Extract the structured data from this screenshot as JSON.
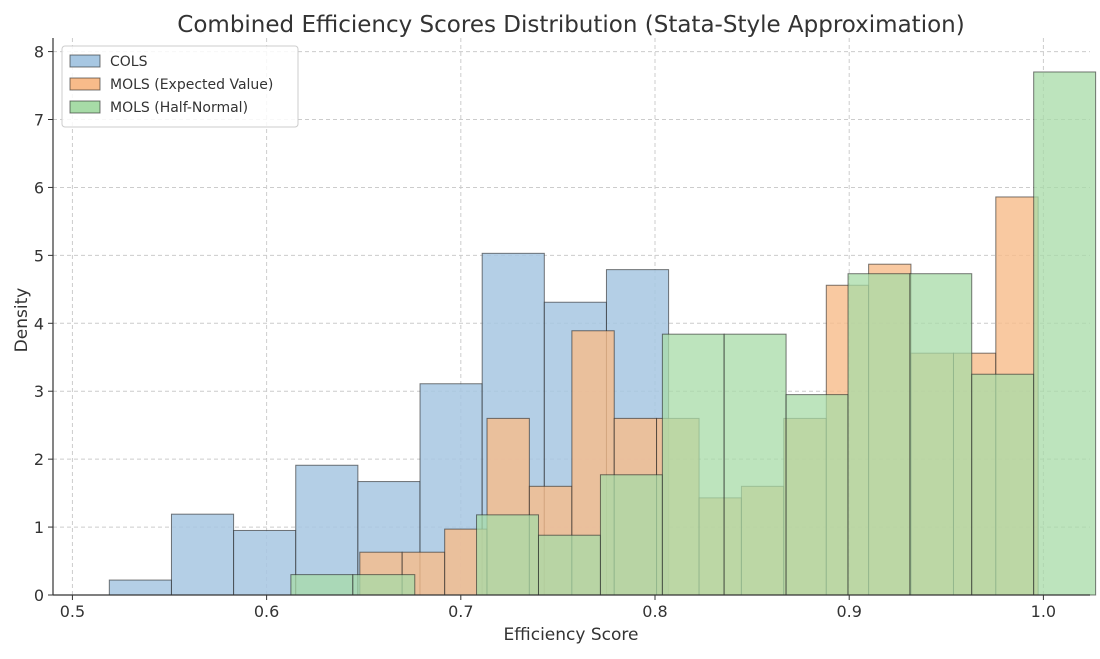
{
  "chart_data": {
    "type": "bar",
    "title": "Combined Efficiency Scores Distribution (Stata-Style Approximation)",
    "xlabel": "Efficiency Score",
    "ylabel": "Density",
    "xlim": [
      0.49,
      1.024
    ],
    "ylim": [
      0,
      8.2
    ],
    "xticks": [
      "0.5",
      "0.6",
      "0.7",
      "0.8",
      "0.9",
      "1.0"
    ],
    "yticks": [
      "0",
      "1",
      "2",
      "3",
      "4",
      "5",
      "6",
      "7",
      "8"
    ],
    "grid": true,
    "legend_position": "top-left",
    "series": [
      {
        "name": "COLS",
        "color": "#a7c7e2",
        "edges": [
          0.519,
          0.551,
          0.583,
          0.615,
          0.647,
          0.679,
          0.711,
          0.743,
          0.775,
          0.807
        ],
        "values": [
          0.22,
          1.19,
          0.95,
          1.91,
          1.67,
          3.11,
          5.03,
          4.31,
          4.79
        ]
      },
      {
        "name": "MOLS (Expected Value)",
        "color": "#f8bb8a",
        "edges": [
          0.648,
          0.6698,
          0.6917,
          0.7135,
          0.7353,
          0.7572,
          0.779,
          0.8008,
          0.8227,
          0.8445,
          0.8663,
          0.8882,
          0.91,
          0.9318,
          0.9537,
          0.9755,
          0.9973
        ],
        "values": [
          0.63,
          0.63,
          0.97,
          2.6,
          1.6,
          3.89,
          2.6,
          2.6,
          1.43,
          1.6,
          2.6,
          4.56,
          4.87,
          3.56,
          3.56,
          5.86
        ]
      },
      {
        "name": "MOLS (Half-Normal)",
        "color": "#a7dba7",
        "edges": [
          0.6125,
          0.6444,
          0.6763,
          0.7081,
          0.74,
          0.7719,
          0.8038,
          0.8356,
          0.8675,
          0.8994,
          0.9313,
          0.9631,
          0.995,
          1.0269
        ],
        "values": [
          0.3,
          0.3,
          0.0,
          1.18,
          0.88,
          1.77,
          3.84,
          3.84,
          2.95,
          4.73,
          4.73,
          3.25,
          7.7
        ]
      }
    ]
  }
}
